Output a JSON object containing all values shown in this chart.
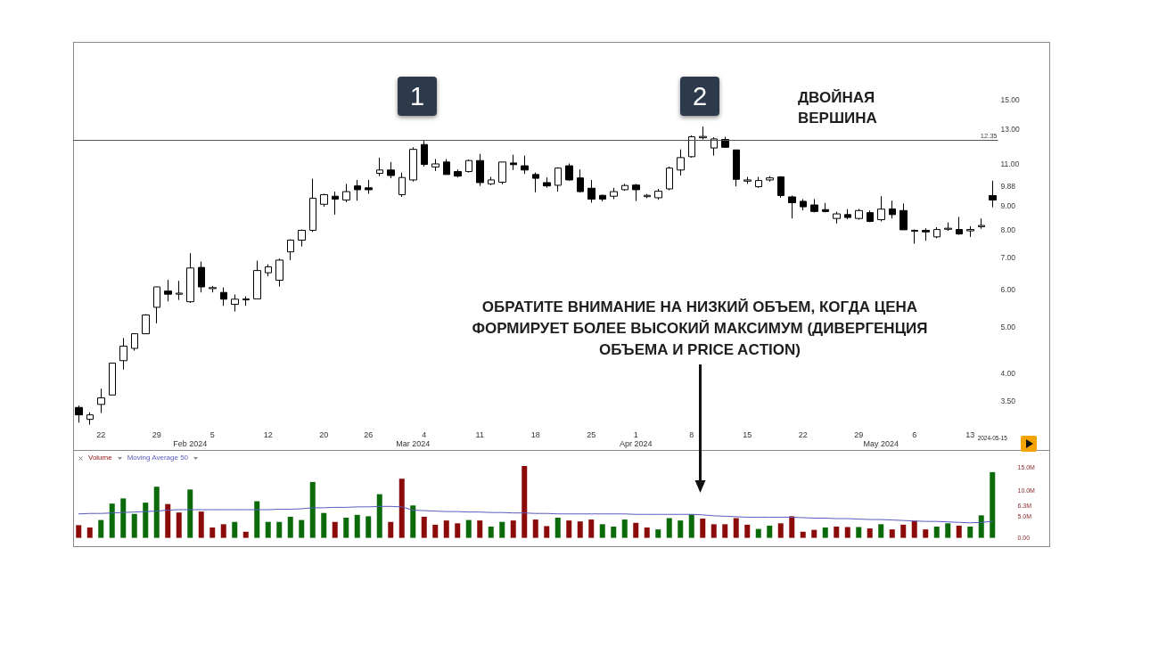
{
  "chart_data": [
    {
      "type": "candlestick",
      "annotations": [
        "1",
        "2",
        "ДВОЙНАЯ\nВЕРШИНА",
        "ОБРАТИТЕ ВНИМАНИЕ НА НИЗКИЙ ОБЪЕМ, КОГДА ЦЕНА\nФОРМИРУЕТ БОЛЕЕ ВЫСОКИЙ МАКСИМУМ (ДИВЕРГЕНЦИЯ\nОБЪЕМА И PRICE ACTION)"
      ],
      "categories": [
        null,
        null,
        "22",
        null,
        null,
        null,
        null,
        "29",
        null,
        null,
        "\nFeb 2024",
        null,
        "5",
        null,
        null,
        null,
        null,
        "12",
        null,
        null,
        null,
        null,
        "20",
        null,
        null,
        null,
        "26",
        null,
        null,
        null,
        "\nMar 2024",
        "4",
        null,
        null,
        null,
        null,
        "11",
        null,
        null,
        null,
        null,
        "18",
        null,
        null,
        null,
        null,
        "25",
        null,
        null,
        null,
        "1\nApr 2024",
        null,
        null,
        null,
        null,
        "8",
        null,
        null,
        null,
        null,
        "15",
        null,
        null,
        null,
        null,
        "22",
        null,
        null,
        null,
        null,
        "29",
        null,
        "\nMay 2024",
        null,
        null,
        "6",
        null,
        null,
        null,
        null,
        "13",
        null,
        "2024-05-15"
      ],
      "ohlc": [
        [
          3.39,
          3.42,
          3.15,
          3.27
        ],
        [
          3.2,
          3.31,
          3.12,
          3.27
        ],
        [
          3.44,
          3.71,
          3.3,
          3.55
        ],
        [
          3.6,
          4.2,
          3.6,
          4.2
        ],
        [
          4.25,
          4.74,
          4.07,
          4.56
        ],
        [
          4.51,
          4.84,
          4.46,
          4.84
        ],
        [
          4.84,
          5.32,
          4.84,
          5.3
        ],
        [
          5.5,
          6.07,
          5.09,
          6.07
        ],
        [
          5.95,
          6.28,
          5.66,
          5.86
        ],
        [
          5.86,
          6.25,
          5.7,
          5.89
        ],
        [
          5.65,
          7.14,
          5.62,
          6.65
        ],
        [
          6.67,
          6.86,
          5.91,
          6.07
        ],
        [
          6.02,
          6.1,
          5.91,
          6.05
        ],
        [
          5.91,
          6.05,
          5.54,
          5.72
        ],
        [
          5.58,
          5.85,
          5.39,
          5.72
        ],
        [
          5.7,
          5.8,
          5.54,
          5.73
        ],
        [
          5.73,
          6.89,
          5.73,
          6.57
        ],
        [
          6.5,
          6.77,
          6.39,
          6.69
        ],
        [
          6.27,
          6.96,
          6.08,
          6.91
        ],
        [
          7.19,
          7.64,
          6.91,
          7.61
        ],
        [
          7.61,
          8.01,
          7.38,
          7.98
        ],
        [
          7.98,
          10.24,
          7.92,
          9.32
        ],
        [
          9.05,
          9.52,
          8.95,
          9.48
        ],
        [
          9.41,
          9.62,
          8.61,
          9.28
        ],
        [
          9.24,
          9.99,
          9.14,
          9.62
        ],
        [
          9.89,
          10.18,
          9.21,
          9.71
        ],
        [
          9.8,
          10.18,
          9.52,
          9.71
        ],
        [
          10.51,
          11.34,
          10.37,
          10.68
        ],
        [
          10.68,
          11.1,
          10.26,
          10.4
        ],
        [
          9.48,
          10.55,
          9.38,
          10.3
        ],
        [
          10.18,
          11.92,
          10.1,
          11.8
        ],
        [
          12.08,
          12.36,
          10.86,
          10.97
        ],
        [
          10.84,
          11.26,
          10.63,
          11.0
        ],
        [
          11.1,
          11.26,
          10.45,
          10.45
        ],
        [
          10.6,
          10.71,
          10.3,
          10.37
        ],
        [
          10.6,
          11.23,
          10.55,
          11.18
        ],
        [
          11.18,
          11.55,
          9.89,
          10.05
        ],
        [
          9.99,
          10.33,
          9.93,
          10.18
        ],
        [
          10.07,
          11.1,
          9.97,
          11.1
        ],
        [
          11.05,
          11.5,
          10.68,
          10.96
        ],
        [
          10.9,
          11.45,
          10.48,
          10.68
        ],
        [
          10.45,
          10.55,
          9.59,
          10.26
        ],
        [
          10.05,
          10.3,
          9.81,
          9.89
        ],
        [
          9.92,
          10.82,
          9.62,
          10.78
        ],
        [
          10.9,
          11.02,
          10.14,
          10.18
        ],
        [
          10.28,
          10.71,
          9.58,
          9.62
        ],
        [
          9.78,
          10.18,
          9.12,
          9.28
        ],
        [
          9.45,
          9.48,
          9.18,
          9.28
        ],
        [
          9.41,
          9.8,
          9.28,
          9.62
        ],
        [
          9.71,
          9.99,
          9.66,
          9.91
        ],
        [
          9.93,
          9.99,
          9.19,
          9.71
        ],
        [
          9.39,
          9.51,
          9.32,
          9.45
        ],
        [
          9.34,
          9.75,
          9.25,
          9.64
        ],
        [
          9.75,
          10.86,
          9.68,
          10.78
        ],
        [
          10.68,
          11.8,
          10.4,
          11.34
        ],
        [
          11.39,
          12.63,
          11.34,
          12.54
        ],
        [
          12.48,
          13.18,
          12.38,
          12.56
        ],
        [
          11.88,
          12.51,
          11.45,
          12.41
        ],
        [
          12.38,
          12.54,
          11.89,
          11.92
        ],
        [
          11.77,
          11.77,
          9.87,
          10.21
        ],
        [
          10.12,
          10.33,
          9.99,
          10.18
        ],
        [
          9.85,
          10.33,
          9.8,
          10.15
        ],
        [
          10.18,
          10.37,
          10.1,
          10.28
        ],
        [
          10.33,
          10.37,
          9.34,
          9.44
        ],
        [
          9.38,
          9.44,
          8.45,
          9.12
        ],
        [
          9.18,
          9.28,
          8.79,
          8.94
        ],
        [
          9.02,
          9.28,
          8.7,
          8.74
        ],
        [
          8.82,
          9.11,
          8.7,
          8.74
        ],
        [
          8.45,
          8.73,
          8.25,
          8.64
        ],
        [
          8.61,
          8.84,
          8.42,
          8.49
        ],
        [
          8.45,
          8.85,
          8.4,
          8.78
        ],
        [
          8.69,
          8.78,
          8.3,
          8.33
        ],
        [
          8.4,
          9.41,
          8.33,
          8.84
        ],
        [
          8.85,
          9.21,
          8.45,
          8.61
        ],
        [
          8.78,
          9.08,
          8.0,
          8.0
        ],
        [
          7.94,
          8.01,
          7.48,
          7.98
        ],
        [
          7.98,
          8.06,
          7.59,
          7.92
        ],
        [
          7.73,
          8.1,
          7.68,
          8.01
        ],
        [
          8.02,
          8.29,
          7.96,
          8.06
        ],
        [
          8.01,
          8.51,
          7.81,
          7.84
        ],
        [
          7.96,
          8.14,
          7.73,
          8.01
        ],
        [
          8.12,
          8.45,
          8.04,
          8.17
        ],
        [
          9.44,
          10.14,
          8.92,
          9.24
        ]
      ],
      "color": "#000000",
      "colors": [
        "#000000",
        "#ffffff",
        "#ffffff",
        "#ffffff",
        "#ffffff",
        "#ffffff",
        "#ffffff",
        "#ffffff",
        "#000000",
        "#ffffff",
        "#ffffff",
        "#000000",
        "#ffffff",
        "#000000",
        "#ffffff",
        "#ffffff",
        "#ffffff",
        "#ffffff",
        "#ffffff",
        "#ffffff",
        "#ffffff",
        "#ffffff",
        "#ffffff",
        "#000000",
        "#ffffff",
        "#000000",
        "#000000",
        "#ffffff",
        "#000000",
        "#ffffff",
        "#ffffff",
        "#000000",
        "#ffffff",
        "#000000",
        "#000000",
        "#ffffff",
        "#000000",
        "#ffffff",
        "#ffffff",
        "#000000",
        "#000000",
        "#000000",
        "#000000",
        "#ffffff",
        "#000000",
        "#000000",
        "#000000",
        "#000000",
        "#ffffff",
        "#ffffff",
        "#000000",
        "#ffffff",
        "#ffffff",
        "#ffffff",
        "#ffffff",
        "#ffffff",
        "#ffffff",
        "#ffffff",
        "#000000",
        "#000000",
        "#ffffff",
        "#ffffff",
        "#ffffff",
        "#000000",
        "#000000",
        "#000000",
        "#000000",
        "#000000",
        "#ffffff",
        "#000000",
        "#ffffff",
        "#000000",
        "#ffffff",
        "#000000",
        "#000000",
        "#ffffff",
        "#000000",
        "#ffffff",
        "#ffffff",
        "#000000",
        "#ffffff",
        "#ffffff",
        "#000000"
      ],
      "log": true,
      "ylim": [
        2.76,
        19.84
      ],
      "yticks": [
        {
          "value": 3.5,
          "label": "3.50"
        },
        {
          "value": 4,
          "label": "4.00"
        },
        {
          "value": 5,
          "label": "5.00"
        },
        {
          "value": 6,
          "label": "6.00"
        },
        {
          "value": 7,
          "label": "7.00"
        },
        {
          "value": 8,
          "label": "8.00"
        },
        {
          "value": 9,
          "label": "9.00"
        },
        {
          "value": 9.88,
          "label": "9.88"
        },
        {
          "value": 11,
          "label": "11.00"
        },
        {
          "value": 13,
          "label": "13.00"
        },
        {
          "value": 15,
          "label": "15.00"
        }
      ],
      "ref_lines": [
        {
          "axis": "y",
          "value": 12.35,
          "label": "12.35",
          "color": "#555555"
        }
      ]
    },
    {
      "type": "bar",
      "tick_labels": "y",
      "legend": "top left",
      "marker": "none",
      "series": [
        {
          "name": "Volume",
          "type": "bar",
          "color": "#8b0b0b",
          "colors": [
            "#8b0b0b",
            "#8b0b0b",
            "#0b6b0b",
            "#0b6b0b",
            "#0b6b0b",
            "#0b6b0b",
            "#0b6b0b",
            "#0b6b0b",
            "#8b0b0b",
            "#8b0b0b",
            "#0b6b0b",
            "#8b0b0b",
            "#8b0b0b",
            "#8b0b0b",
            "#0b6b0b",
            "#8b0b0b",
            "#0b6b0b",
            "#0b6b0b",
            "#0b6b0b",
            "#0b6b0b",
            "#0b6b0b",
            "#0b6b0b",
            "#0b6b0b",
            "#8b0b0b",
            "#0b6b0b",
            "#0b6b0b",
            "#0b6b0b",
            "#0b6b0b",
            "#8b0b0b",
            "#8b0b0b",
            "#0b6b0b",
            "#8b0b0b",
            "#8b0b0b",
            "#8b0b0b",
            "#8b0b0b",
            "#0b6b0b",
            "#8b0b0b",
            "#0b6b0b",
            "#0b6b0b",
            "#8b0b0b",
            "#8b0b0b",
            "#8b0b0b",
            "#8b0b0b",
            "#0b6b0b",
            "#8b0b0b",
            "#8b0b0b",
            "#8b0b0b",
            "#0b6b0b",
            "#0b6b0b",
            "#0b6b0b",
            "#8b0b0b",
            "#8b0b0b",
            "#0b6b0b",
            "#0b6b0b",
            "#0b6b0b",
            "#0b6b0b",
            "#8b0b0b",
            "#8b0b0b",
            "#8b0b0b",
            "#8b0b0b",
            "#8b0b0b",
            "#0b6b0b",
            "#0b6b0b",
            "#8b0b0b",
            "#8b0b0b",
            "#8b0b0b",
            "#8b0b0b",
            "#0b6b0b",
            "#8b0b0b",
            "#8b0b0b",
            "#0b6b0b",
            "#8b0b0b",
            "#0b6b0b",
            "#8b0b0b",
            "#8b0b0b",
            "#8b0b0b",
            "#8b0b0b",
            "#0b6b0b",
            "#0b6b0b",
            "#8b0b0b",
            "#0b6b0b",
            "#0b6b0b",
            "#0b6b0b"
          ],
          "values": [
            2.7,
            2.2,
            3.8,
            7.3,
            8.4,
            5.1,
            7.5,
            10.9,
            7.2,
            5.4,
            10.3,
            5.6,
            2.2,
            2.9,
            3.4,
            1.3,
            7.8,
            3.4,
            3.4,
            4.5,
            3.8,
            11.9,
            5.3,
            3.4,
            4.3,
            4.9,
            4.6,
            9.3,
            3.4,
            12.6,
            6.9,
            4.5,
            2.8,
            3.7,
            3.1,
            3.8,
            3.7,
            2.4,
            3.4,
            3.7,
            15.3,
            3.9,
            2.5,
            4.3,
            3.7,
            3.5,
            3.9,
            2.9,
            2.4,
            3.9,
            3.2,
            2.2,
            1.8,
            4.2,
            3.7,
            5.0,
            4.1,
            2.9,
            2.9,
            4.2,
            2.8,
            1.9,
            2.6,
            3.1,
            4.6,
            1.3,
            1.7,
            2.2,
            2.4,
            2.3,
            2.3,
            2.0,
            2.9,
            1.8,
            2.8,
            3.6,
            1.8,
            2.4,
            3.1,
            2.6,
            2.4,
            4.8,
            14.0
          ]
        },
        {
          "name": "Moving Average 50",
          "type": "line",
          "color": "#5a5ac0",
          "values": [
            5.1,
            5.2,
            5.2,
            5.3,
            5.4,
            5.5,
            5.6,
            5.7,
            5.9,
            6.0,
            6.0,
            6.0,
            6.0,
            6.0,
            6.0,
            6.0,
            6.0,
            6.0,
            6.1,
            6.1,
            6.2,
            6.4,
            6.4,
            6.5,
            6.5,
            6.6,
            6.6,
            6.7,
            6.7,
            6.6,
            5.9,
            5.8,
            5.7,
            5.6,
            5.6,
            5.5,
            5.5,
            5.4,
            5.4,
            5.3,
            5.3,
            5.2,
            5.2,
            5.1,
            5.1,
            5.1,
            5.1,
            5.1,
            5.1,
            5.1,
            5.0,
            5.0,
            5.0,
            5.0,
            5.0,
            5.0,
            4.9,
            4.7,
            4.6,
            4.5,
            4.4,
            4.4,
            4.4,
            4.4,
            4.4,
            4.3,
            4.2,
            4.2,
            4.1,
            4.1,
            4.0,
            3.9,
            3.9,
            3.8,
            3.7,
            3.6,
            3.5,
            3.5,
            3.4,
            3.3,
            3.2,
            3.3,
            3.5
          ]
        }
      ],
      "ylim": [
        -1.78,
        18.72
      ],
      "yticks": [
        {
          "value": 0,
          "label": "0.00"
        },
        {
          "value": 5,
          "label": "5.0M"
        },
        {
          "value": 6.3,
          "label": "6.3M"
        },
        {
          "value": 10,
          "label": "10.0M"
        },
        {
          "value": 15,
          "label": "15.0M"
        }
      ]
    }
  ]
}
